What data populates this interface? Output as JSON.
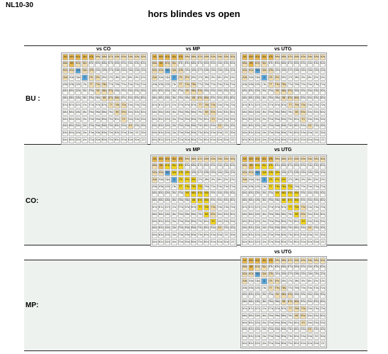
{
  "header": {
    "tag": "NL10-30",
    "title": "hors blindes vs open"
  },
  "colors": {
    "fold": "#f7f7f3",
    "call": "#f3dfb0",
    "raise": "#f2d51e",
    "threebet": "#5aa8dc",
    "premium": "#e9b84a",
    "band": "#eef2ef"
  },
  "ranks": [
    "A",
    "K",
    "Q",
    "J",
    "T",
    "9",
    "8",
    "7",
    "6",
    "5",
    "4",
    "3",
    "2"
  ],
  "sections": [
    {
      "label": "BU :",
      "charts": [
        {
          "title": "vs CO",
          "profile": "bu_co"
        },
        {
          "title": "vs MP",
          "profile": "bu_mp"
        },
        {
          "title": "vs UTG",
          "profile": "bu_utg"
        }
      ]
    },
    {
      "label": "CO:",
      "charts": [
        {
          "title": "vs MP",
          "profile": "co_mp"
        },
        {
          "title": "vs UTG",
          "profile": "co_utg"
        }
      ]
    },
    {
      "label": "MP:",
      "charts": [
        {
          "title": "vs UTG",
          "profile": "mp_utg"
        }
      ]
    }
  ]
}
